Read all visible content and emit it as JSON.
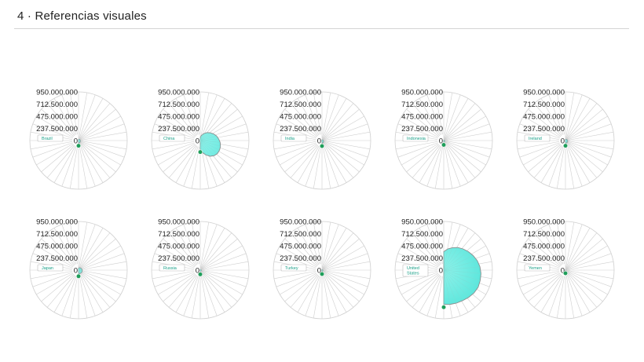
{
  "page": {
    "title": "4 · Referencias visuales"
  },
  "colors": {
    "fill": "#4fe3d8",
    "stroke": "#8c8c8c",
    "grid": "#cfcfcf",
    "marker": "#1f9e5a",
    "label_text": "#1aa088"
  },
  "chart_data": [
    {
      "type": "radial-area",
      "country": "Brazil",
      "ticks": [
        "950.000.000",
        "712.500.000",
        "475.000.000",
        "237.500.000",
        "0"
      ],
      "ylim": [
        0,
        950000000
      ],
      "values": [
        22000000,
        24000000,
        26000000,
        27000000,
        29000000,
        30000000,
        32000000,
        33000000,
        35000000,
        36000000,
        38000000,
        39000000,
        41000000,
        42000000,
        44000000,
        45000000,
        47000000,
        48000000
      ]
    },
    {
      "type": "radial-area",
      "country": "China",
      "ticks": [
        "950.000.000",
        "712.500.000",
        "475.000.000",
        "237.500.000",
        "0"
      ],
      "ylim": [
        0,
        950000000
      ],
      "values": [
        60000000,
        95000000,
        130000000,
        170000000,
        210000000,
        250000000,
        290000000,
        330000000,
        360000000,
        390000000,
        410000000,
        420000000,
        420000000,
        400000000,
        360000000,
        300000000,
        240000000,
        170000000
      ]
    },
    {
      "type": "radial-area",
      "country": "India",
      "ticks": [
        "950.000.000",
        "712.500.000",
        "475.000.000",
        "237.500.000",
        "0"
      ],
      "ylim": [
        0,
        950000000
      ],
      "values": [
        10000000,
        11000000,
        13000000,
        15000000,
        17000000,
        19000000,
        21000000,
        23000000,
        25000000,
        28000000,
        30000000,
        33000000,
        36000000,
        39000000,
        42000000,
        46000000,
        50000000,
        54000000
      ]
    },
    {
      "type": "radial-area",
      "country": "Indonesia",
      "ticks": [
        "950.000.000",
        "712.500.000",
        "475.000.000",
        "237.500.000",
        "0"
      ],
      "ylim": [
        0,
        950000000
      ],
      "values": [
        6000000,
        7000000,
        8000000,
        9000000,
        10000000,
        11000000,
        12000000,
        13000000,
        14000000,
        15000000,
        17000000,
        19000000,
        20000000,
        22000000,
        24000000,
        26000000,
        28000000,
        30000000
      ]
    },
    {
      "type": "radial-area",
      "country": "Ireland",
      "ticks": [
        "950.000.000",
        "712.500.000",
        "475.000.000",
        "237.500.000",
        "0"
      ],
      "ylim": [
        0,
        950000000
      ],
      "values": [
        20000000,
        22000000,
        25000000,
        27000000,
        30000000,
        32000000,
        35000000,
        38000000,
        40000000,
        42000000,
        44000000,
        46000000,
        47000000,
        48000000,
        49000000,
        50000000,
        50000000,
        48000000
      ]
    },
    {
      "type": "radial-area",
      "country": "Japan",
      "ticks": [
        "950.000.000",
        "712.500.000",
        "475.000.000",
        "237.500.000",
        "0"
      ],
      "ylim": [
        0,
        950000000
      ],
      "values": [
        40000000,
        44000000,
        48000000,
        52000000,
        56000000,
        60000000,
        64000000,
        68000000,
        70000000,
        72000000,
        74000000,
        75000000,
        75000000,
        74000000,
        72000000,
        70000000,
        68000000,
        66000000
      ]
    },
    {
      "type": "radial-area",
      "country": "Russia",
      "ticks": [
        "950.000.000",
        "712.500.000",
        "475.000.000",
        "237.500.000",
        "0"
      ],
      "ylim": [
        0,
        950000000
      ],
      "values": [
        8000000,
        9000000,
        10000000,
        11000000,
        12000000,
        13000000,
        14000000,
        15000000,
        16000000,
        17000000,
        18000000,
        19000000,
        20000000,
        21000000,
        22000000,
        24000000,
        26000000,
        28000000
      ]
    },
    {
      "type": "radial-area",
      "country": "Turkey",
      "ticks": [
        "950.000.000",
        "712.500.000",
        "475.000.000",
        "237.500.000",
        "0"
      ],
      "ylim": [
        0,
        950000000
      ],
      "values": [
        6000000,
        7000000,
        8000000,
        9000000,
        10000000,
        11000000,
        12000000,
        13000000,
        14000000,
        15000000,
        16000000,
        17000000,
        18000000,
        19000000,
        20000000,
        21000000,
        22000000,
        23000000
      ]
    },
    {
      "type": "radial-area",
      "country": "United States",
      "ticks": [
        "950.000.000",
        "712.500.000",
        "475.000.000",
        "237.500.000",
        "0"
      ],
      "ylim": [
        0,
        950000000
      ],
      "values": [
        360000000,
        420000000,
        470000000,
        520000000,
        560000000,
        600000000,
        640000000,
        680000000,
        710000000,
        730000000,
        740000000,
        750000000,
        740000000,
        720000000,
        700000000,
        690000000,
        680000000,
        670000000
      ]
    },
    {
      "type": "radial-area",
      "country": "Yemen",
      "ticks": [
        "950.000.000",
        "712.500.000",
        "475.000.000",
        "237.500.000",
        "0"
      ],
      "ylim": [
        0,
        950000000
      ],
      "values": [
        2000000,
        2000000,
        3000000,
        3000000,
        3000000,
        4000000,
        4000000,
        4000000,
        5000000,
        5000000,
        5000000,
        6000000,
        6000000,
        6000000,
        7000000,
        7000000,
        7000000,
        8000000
      ]
    }
  ]
}
